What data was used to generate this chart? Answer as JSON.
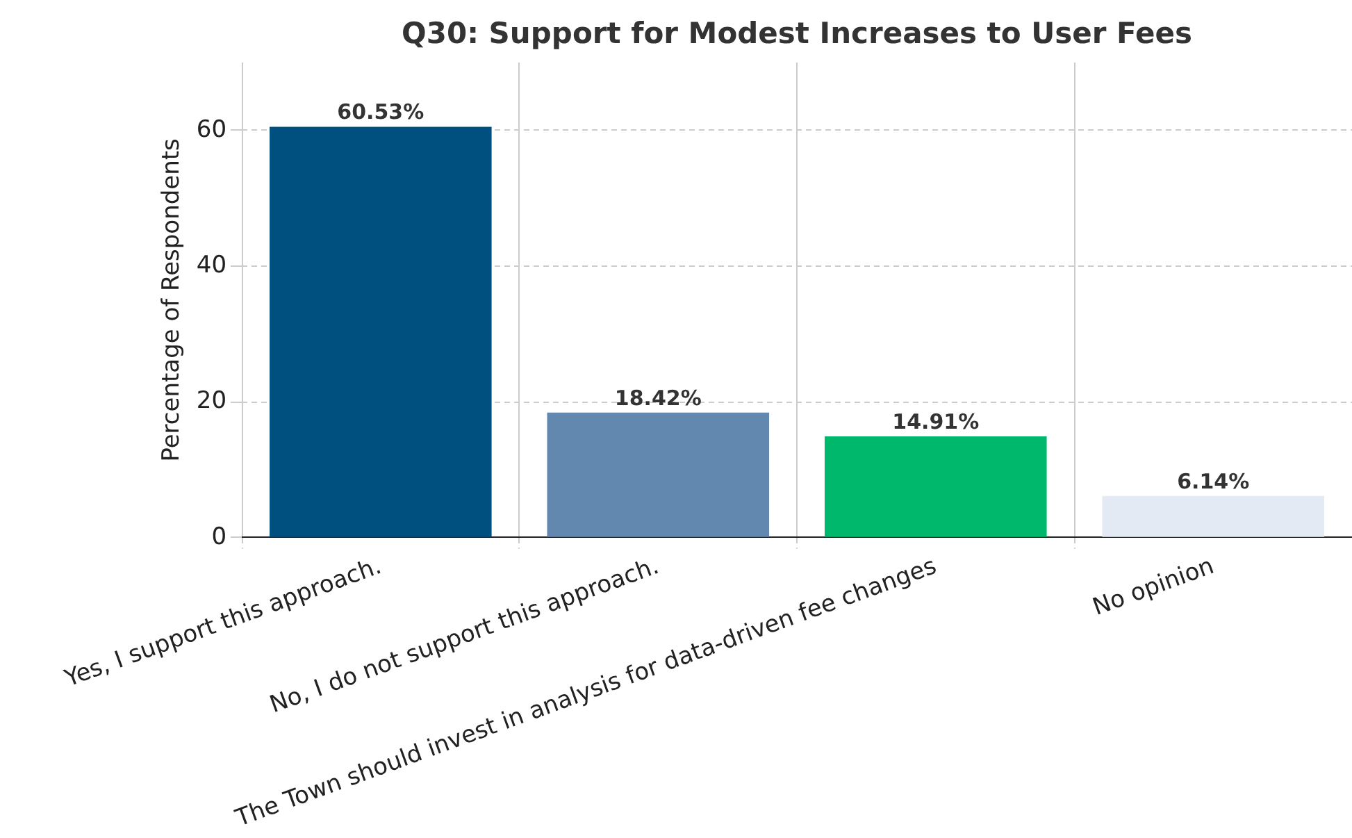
{
  "chart_data": {
    "type": "bar",
    "title": "Q30: Support for Modest Increases to User Fees",
    "ylabel": "Percentage of Respondents",
    "categories": [
      "Yes, I support this approach.",
      "No, I do not support this approach.",
      "The Town should invest in analysis for data-driven fee changes",
      "No opinion"
    ],
    "values": [
      60.53,
      18.42,
      14.91,
      6.14
    ],
    "colors": [
      "#00507f",
      "#6388b0",
      "#00b86b",
      "#e3eaf4"
    ],
    "value_labels": [
      "60.53%",
      "18.42%",
      "14.91%",
      "6.14%"
    ],
    "ylim": [
      0,
      70
    ],
    "yticks": [
      0,
      20,
      40,
      60
    ],
    "grid": true
  }
}
